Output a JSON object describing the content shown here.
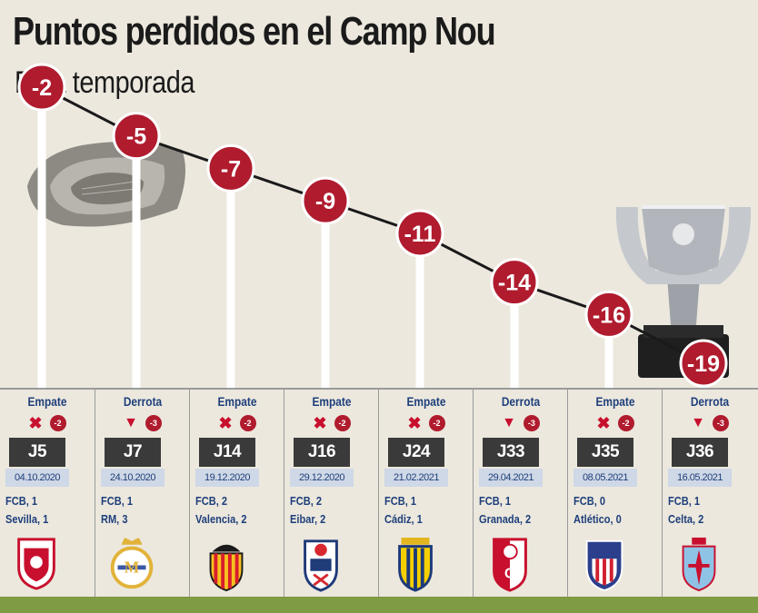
{
  "title": "Puntos perdidos en el Camp Nou",
  "subtitle": "Esta temporada",
  "colors": {
    "bubble": "#b01b2e",
    "text_blue": "#1e3f7a",
    "background": "#ece8de",
    "grass": "#7f9c45"
  },
  "chart_data": {
    "type": "line",
    "title": "Puntos perdidos en el Camp Nou",
    "subtitle": "Esta temporada",
    "categories": [
      "J5",
      "J7",
      "J14",
      "J16",
      "J24",
      "J33",
      "J35",
      "J36"
    ],
    "values": [
      -2,
      -5,
      -7,
      -9,
      -11,
      -14,
      -16,
      -19
    ],
    "labels": [
      "-2",
      "-5",
      "-7",
      "-9",
      "-11",
      "-14",
      "-16",
      "-19"
    ]
  },
  "matches": [
    {
      "result": "Empate",
      "icon": "x-icon",
      "points": "-2",
      "round": "J5",
      "date": "04.10.2020",
      "home": "FCB, 1",
      "away": "Sevilla, 1",
      "crest": "sevilla-crest"
    },
    {
      "result": "Derrota",
      "icon": "arrow-down-icon",
      "points": "-3",
      "round": "J7",
      "date": "24.10.2020",
      "home": "FCB, 1",
      "away": "RM, 3",
      "crest": "real-madrid-crest"
    },
    {
      "result": "Empate",
      "icon": "x-icon",
      "points": "-2",
      "round": "J14",
      "date": "19.12.2020",
      "home": "FCB, 2",
      "away": "Valencia, 2",
      "crest": "valencia-crest"
    },
    {
      "result": "Empate",
      "icon": "x-icon",
      "points": "-2",
      "round": "J16",
      "date": "29.12.2020",
      "home": "FCB, 2",
      "away": "Eibar, 2",
      "crest": "eibar-crest"
    },
    {
      "result": "Empate",
      "icon": "x-icon",
      "points": "-2",
      "round": "J24",
      "date": "21.02.2021",
      "home": "FCB, 1",
      "away": "Cádiz, 1",
      "crest": "cadiz-crest"
    },
    {
      "result": "Derrota",
      "icon": "arrow-down-icon",
      "points": "-3",
      "round": "J33",
      "date": "29.04.2021",
      "home": "FCB, 1",
      "away": "Granada, 2",
      "crest": "granada-crest"
    },
    {
      "result": "Empate",
      "icon": "x-icon",
      "points": "-2",
      "round": "J35",
      "date": "08.05.2021",
      "home": "FCB, 0",
      "away": "Atlético, 0",
      "crest": "atletico-crest"
    },
    {
      "result": "Derrota",
      "icon": "arrow-down-icon",
      "points": "-3",
      "round": "J36",
      "date": "16.05.2021",
      "home": "FCB, 1",
      "away": "Celta, 2",
      "crest": "celta-crest"
    }
  ]
}
